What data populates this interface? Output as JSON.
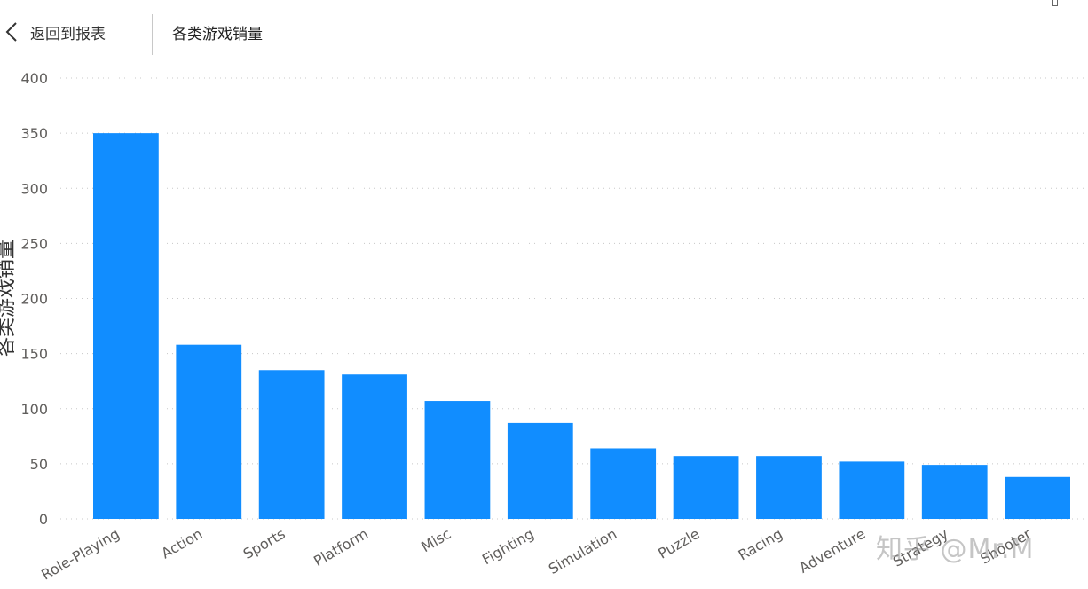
{
  "header": {
    "back_label": "返回到报表",
    "title": "各类游戏销量"
  },
  "watermark": "知乎 @Mr.M",
  "chart_data": {
    "type": "bar",
    "title": "",
    "xlabel": "",
    "ylabel": "各类游戏销量",
    "ylim": [
      0,
      400
    ],
    "yticks": [
      0,
      50,
      100,
      150,
      200,
      250,
      300,
      350,
      400
    ],
    "grid": "horizontal-dotted",
    "bar_color": "#118dff",
    "categories": [
      "Role-Playing",
      "Action",
      "Sports",
      "Platform",
      "Misc",
      "Fighting",
      "Simulation",
      "Puzzle",
      "Racing",
      "Adventure",
      "Strategy",
      "Shooter"
    ],
    "values": [
      350,
      158,
      135,
      131,
      107,
      87,
      64,
      57,
      57,
      52,
      49,
      38
    ]
  }
}
